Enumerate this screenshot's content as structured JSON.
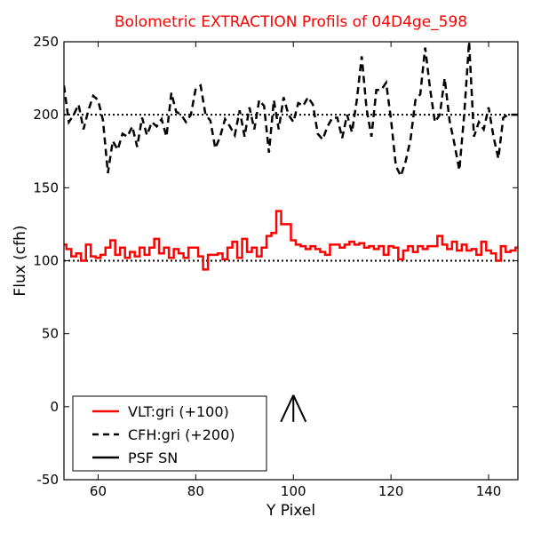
{
  "chart_data": {
    "type": "line",
    "title": "Bolometric EXTRACTION Profils of 04D4ge_598",
    "xlabel": "Y Pixel",
    "ylabel": "Flux (cfh)",
    "xlim": [
      53,
      146
    ],
    "ylim": [
      -50,
      250
    ],
    "xticks": [
      60,
      80,
      100,
      120,
      140
    ],
    "yticks": [
      -50,
      0,
      50,
      100,
      150,
      200,
      250
    ],
    "grid": false,
    "legend_position": "lower-left",
    "reference_lines": [
      {
        "y": 100,
        "style": "dotted",
        "color": "#000000"
      },
      {
        "y": 200,
        "style": "dotted",
        "color": "#000000"
      }
    ],
    "series": [
      {
        "name": "VLT:gri (+100)",
        "style": "steps-mid",
        "color": "#ff0000",
        "x": [
          53,
          54,
          55,
          56,
          57,
          58,
          59,
          60,
          61,
          62,
          63,
          64,
          65,
          66,
          67,
          68,
          69,
          70,
          71,
          72,
          73,
          74,
          75,
          76,
          77,
          78,
          79,
          80,
          81,
          82,
          83,
          84,
          85,
          86,
          87,
          88,
          89,
          90,
          91,
          92,
          93,
          94,
          95,
          96,
          97,
          98,
          99,
          100,
          101,
          102,
          103,
          104,
          105,
          106,
          107,
          108,
          109,
          110,
          111,
          112,
          113,
          114,
          115,
          116,
          117,
          118,
          119,
          120,
          121,
          122,
          123,
          124,
          125,
          126,
          127,
          128,
          129,
          130,
          131,
          132,
          133,
          134,
          135,
          136,
          137,
          138,
          139,
          140,
          141,
          142,
          143,
          144,
          145,
          146
        ],
        "y": [
          111,
          108,
          103,
          105,
          100,
          111,
          103,
          102,
          104,
          109,
          114,
          104,
          109,
          102,
          106,
          103,
          109,
          104,
          109,
          115,
          105,
          109,
          102,
          108,
          105,
          102,
          109,
          109,
          103,
          94,
          104,
          104,
          105,
          101,
          109,
          113,
          102,
          115,
          106,
          109,
          103,
          109,
          117,
          119,
          134,
          125,
          125,
          114,
          111,
          110,
          108,
          110,
          108,
          106,
          104,
          111,
          111,
          109,
          111,
          113,
          111,
          112,
          109,
          110,
          108,
          110,
          104,
          110,
          109,
          101,
          107,
          110,
          106,
          110,
          108,
          110,
          110,
          117,
          111,
          108,
          113,
          107,
          111,
          107,
          108,
          104,
          113,
          107,
          105,
          100,
          110,
          106,
          107,
          109
        ]
      },
      {
        "name": "CFH:gri (+200)",
        "style": "dashed",
        "color": "#000000",
        "x": [
          53,
          54,
          55,
          56,
          57,
          58,
          59,
          60,
          61,
          62,
          63,
          64,
          65,
          66,
          67,
          68,
          69,
          70,
          71,
          72,
          73,
          74,
          75,
          76,
          77,
          78,
          79,
          80,
          81,
          82,
          83,
          84,
          85,
          86,
          87,
          88,
          89,
          90,
          91,
          92,
          93,
          94,
          95,
          96,
          97,
          98,
          99,
          100,
          101,
          102,
          103,
          104,
          105,
          106,
          107,
          108,
          109,
          110,
          111,
          112,
          113,
          114,
          115,
          116,
          117,
          118,
          119,
          120,
          121,
          122,
          123,
          124,
          125,
          126,
          127,
          128,
          129,
          130,
          131,
          132,
          133,
          134,
          135,
          136,
          137,
          138,
          139,
          140,
          141,
          142,
          143,
          144,
          145,
          146
        ],
        "y": [
          220,
          195,
          200,
          207,
          190,
          203,
          213,
          210,
          196,
          160,
          182,
          176,
          187,
          185,
          192,
          178,
          198,
          186,
          195,
          192,
          197,
          185,
          215,
          202,
          200,
          195,
          200,
          218,
          220,
          200,
          196,
          177,
          185,
          197,
          192,
          186,
          203,
          185,
          205,
          190,
          210,
          206,
          174,
          210,
          190,
          212,
          200,
          195,
          208,
          206,
          212,
          207,
          187,
          183,
          192,
          198,
          198,
          184,
          200,
          188,
          210,
          240,
          204,
          185,
          217,
          217,
          222,
          197,
          165,
          158,
          168,
          183,
          210,
          214,
          246,
          218,
          195,
          200,
          225,
          196,
          180,
          162,
          200,
          250,
          185,
          195,
          190,
          205,
          185,
          170,
          198,
          200,
          200,
          200
        ]
      },
      {
        "name": "PSF SN",
        "style": "arrow",
        "color": "#000000",
        "x": [
          100
        ],
        "y": [
          0
        ]
      }
    ]
  }
}
